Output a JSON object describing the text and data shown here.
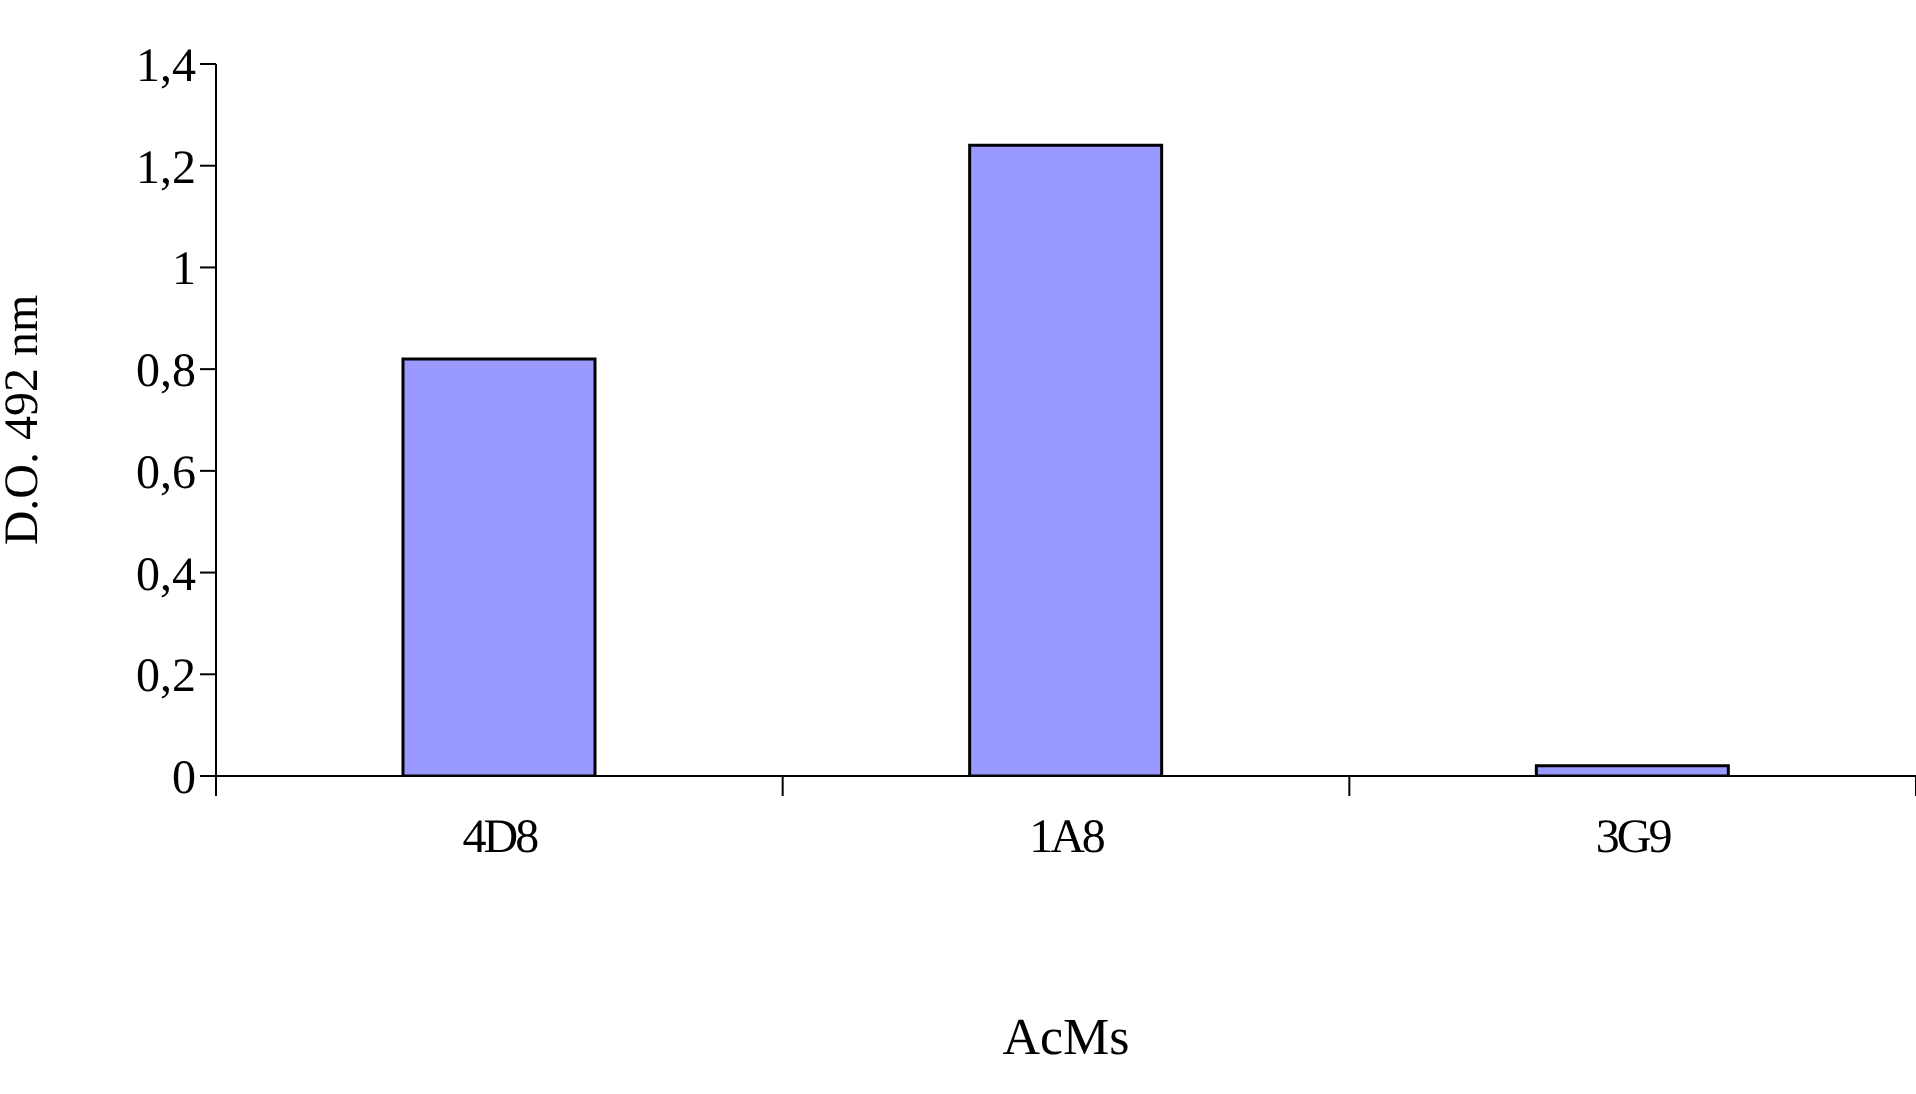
{
  "chart_data": {
    "type": "bar",
    "xlabel": "AcMs",
    "ylabel": "D.O. 492 nm",
    "categories": [
      "4D8",
      "1A8",
      "3G9"
    ],
    "values": [
      0.82,
      1.24,
      0.02
    ],
    "color": "#9999ff",
    "ylim": [
      0,
      1.4
    ],
    "yticks": [
      0,
      {
        "value": 0.2,
        "label": "0,2"
      },
      {
        "value": 0.4,
        "label": "0,4"
      },
      {
        "value": 0.6,
        "label": "0,6"
      },
      {
        "value": 0.8,
        "label": "0,8"
      },
      1,
      {
        "value": 1.2,
        "label": "1,2"
      },
      {
        "value": 1.4,
        "label": "1,4"
      }
    ],
    "grid": false,
    "legend": false
  }
}
